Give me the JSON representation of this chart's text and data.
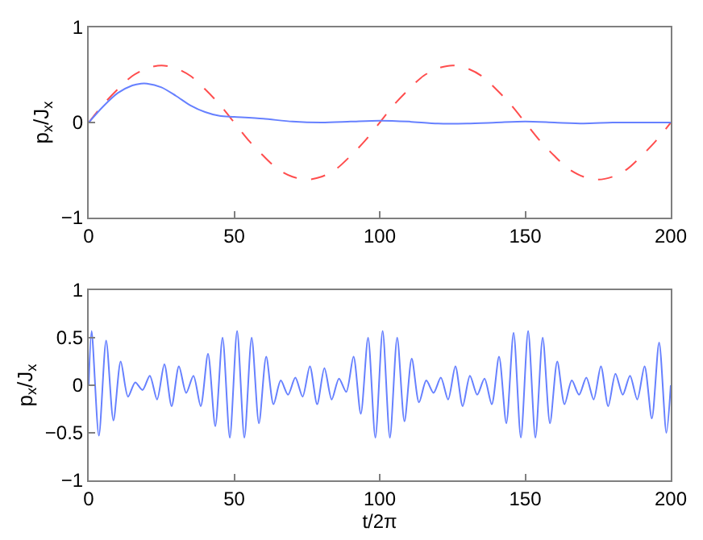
{
  "chart_data": [
    {
      "type": "line",
      "ylabel": "p$_{x}$/J$_{x}$",
      "xlim": [
        0,
        200
      ],
      "xticks": [
        0,
        50,
        100,
        150,
        200
      ],
      "ylim": [
        -1,
        1
      ],
      "yticks": [
        -1,
        0,
        1
      ],
      "series": [
        {
          "color": "#ff4d4d",
          "line_style": "dashed",
          "x": [
            0,
            5,
            10,
            15,
            20,
            25,
            30,
            35,
            40,
            45,
            50,
            55,
            60,
            65,
            70,
            75,
            80,
            85,
            90,
            95,
            100,
            105,
            110,
            115,
            120,
            125,
            130,
            135,
            140,
            145,
            150,
            155,
            160,
            165,
            170,
            175,
            180,
            185,
            190,
            195,
            200
          ],
          "values": [
            0,
            0.19,
            0.35,
            0.49,
            0.57,
            0.6,
            0.57,
            0.49,
            0.35,
            0.19,
            0,
            -0.19,
            -0.35,
            -0.49,
            -0.57,
            -0.6,
            -0.57,
            -0.49,
            -0.35,
            -0.19,
            0,
            0.19,
            0.35,
            0.49,
            0.57,
            0.6,
            0.57,
            0.49,
            0.35,
            0.19,
            0,
            -0.19,
            -0.35,
            -0.49,
            -0.57,
            -0.6,
            -0.57,
            -0.49,
            -0.35,
            -0.19,
            0
          ]
        },
        {
          "color": "#6680ff",
          "line_style": "solid",
          "x": [
            0,
            5,
            10,
            15,
            18,
            20,
            25,
            30,
            35,
            40,
            45,
            50,
            60,
            70,
            80,
            90,
            100,
            110,
            120,
            130,
            140,
            150,
            160,
            170,
            180,
            190,
            200
          ],
          "values": [
            0,
            0.17,
            0.31,
            0.39,
            0.41,
            0.41,
            0.37,
            0.28,
            0.18,
            0.11,
            0.07,
            0.06,
            0.04,
            0.01,
            0.0,
            0.01,
            0.02,
            0.01,
            -0.01,
            -0.01,
            0.0,
            0.01,
            0.0,
            -0.01,
            0.0,
            0.0,
            0.0
          ]
        }
      ]
    },
    {
      "type": "line",
      "xlabel": "t/2π",
      "ylabel": "p$_{x}$/J$_{x}$",
      "xlim": [
        0,
        200
      ],
      "xticks": [
        0,
        50,
        100,
        150,
        200
      ],
      "ylim": [
        -1,
        1
      ],
      "yticks": [
        -1,
        -0.5,
        0,
        0.5,
        1
      ],
      "series": [
        {
          "color": "#6680ff",
          "line_style": "solid",
          "x": [
            0,
            1,
            3.5,
            6,
            8.5,
            11,
            13.5,
            16,
            18.5,
            21,
            23.5,
            26,
            28.5,
            31,
            33.5,
            36,
            38.5,
            41,
            43.5,
            46,
            48.5,
            51,
            53.5,
            56,
            58.5,
            61,
            63.5,
            66,
            68.5,
            71,
            73.5,
            76,
            78.5,
            81,
            83.5,
            86,
            88.5,
            91,
            93.5,
            96,
            98.5,
            101,
            103.5,
            106,
            108.5,
            111,
            113.5,
            116,
            118.5,
            121,
            123.5,
            126,
            128.5,
            131,
            133.5,
            136,
            138.5,
            141,
            143.5,
            146,
            148.5,
            151,
            153.5,
            156,
            158.5,
            161,
            163.5,
            166,
            168.5,
            171,
            173.5,
            176,
            178.5,
            181,
            183.5,
            186,
            188.5,
            191,
            193.5,
            196,
            198.5,
            200
          ],
          "values": [
            0,
            0.57,
            -0.53,
            0.47,
            -0.37,
            0.25,
            -0.12,
            0.03,
            -0.05,
            0.1,
            -0.15,
            0.22,
            -0.22,
            0.2,
            -0.08,
            0.1,
            -0.22,
            0.33,
            -0.43,
            0.5,
            -0.55,
            0.57,
            -0.55,
            0.5,
            -0.4,
            0.3,
            -0.2,
            0.05,
            -0.1,
            0.08,
            -0.12,
            0.2,
            -0.2,
            0.18,
            -0.15,
            0.07,
            -0.07,
            0.3,
            -0.3,
            0.5,
            -0.55,
            0.57,
            -0.55,
            0.5,
            -0.38,
            0.28,
            -0.18,
            0.05,
            -0.08,
            0.08,
            -0.15,
            0.2,
            -0.22,
            0.1,
            -0.1,
            0.07,
            -0.2,
            0.3,
            -0.4,
            0.55,
            -0.55,
            0.57,
            -0.55,
            0.5,
            -0.4,
            0.25,
            -0.2,
            0.05,
            -0.1,
            0.08,
            -0.15,
            0.2,
            -0.22,
            0.12,
            -0.1,
            0.1,
            -0.15,
            0.2,
            -0.35,
            0.45,
            -0.5,
            0
          ]
        }
      ]
    }
  ]
}
